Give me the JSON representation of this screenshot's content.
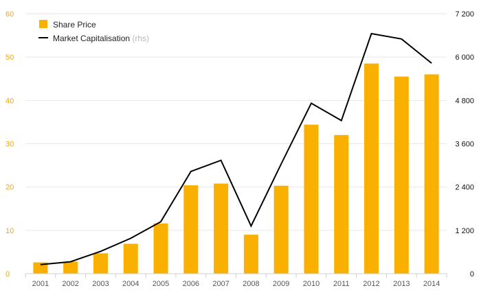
{
  "chart_data": {
    "type": "bar",
    "categories": [
      "2001",
      "2002",
      "2003",
      "2004",
      "2005",
      "2006",
      "2007",
      "2008",
      "2009",
      "2010",
      "2011",
      "2012",
      "2013",
      "2014"
    ],
    "series": [
      {
        "name": "Share Price",
        "type": "bar",
        "axis": "left",
        "color": "#F9B000",
        "values": [
          2.6,
          2.8,
          4.7,
          6.9,
          11.6,
          20.4,
          20.8,
          9.0,
          20.3,
          34.4,
          32.0,
          48.5,
          45.5,
          46.0
        ]
      },
      {
        "name": "Market Capitalisation",
        "type": "line",
        "axis": "right",
        "color": "#000000",
        "values": [
          250,
          330,
          620,
          980,
          1440,
          2830,
          3140,
          1320,
          3040,
          4720,
          4240,
          6650,
          6500,
          5830
        ]
      }
    ],
    "legend": {
      "items": [
        {
          "label": "Share Price",
          "note": ""
        },
        {
          "label": "Market Capitalisation",
          "note": "(rhs)"
        }
      ],
      "position": "top-left"
    },
    "y_left": {
      "range": [
        0,
        60
      ],
      "ticks": [
        0,
        10,
        20,
        30,
        40,
        50,
        60
      ],
      "tick_labels": [
        "0",
        "10",
        "20",
        "30",
        "40",
        "50",
        "60"
      ],
      "color": "#F2A900"
    },
    "y_right": {
      "range": [
        0,
        7200
      ],
      "ticks": [
        0,
        1200,
        2400,
        3600,
        4800,
        6000,
        7200
      ],
      "tick_labels": [
        "0",
        "1 200",
        "2 400",
        "3 600",
        "4 800",
        "6 000",
        "7 200"
      ],
      "color": "#111111"
    },
    "grid": true,
    "title": "",
    "xlabel": "",
    "ylabel": ""
  }
}
